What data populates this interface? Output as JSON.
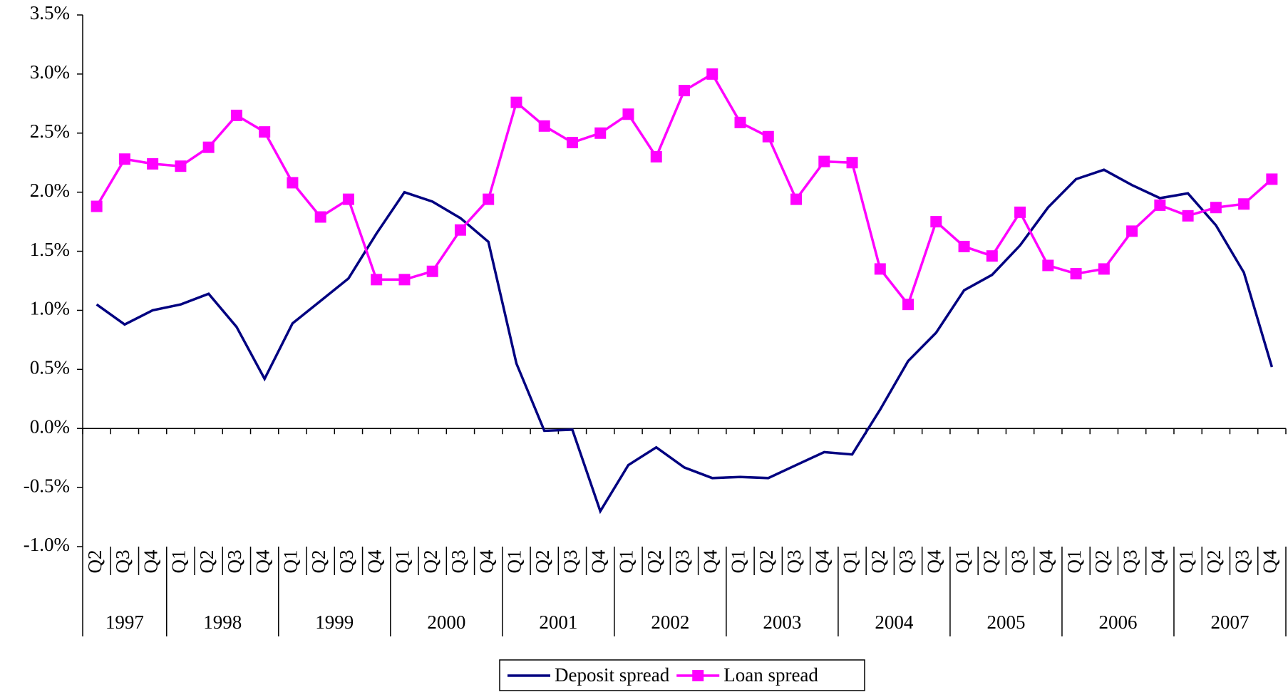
{
  "chart_data": {
    "type": "line",
    "category_groups": [
      {
        "name": "1997",
        "categories": [
          "Q2",
          "Q3",
          "Q4"
        ]
      },
      {
        "name": "1998",
        "categories": [
          "Q1",
          "Q2",
          "Q3",
          "Q4"
        ]
      },
      {
        "name": "1999",
        "categories": [
          "Q1",
          "Q2",
          "Q3",
          "Q4"
        ]
      },
      {
        "name": "2000",
        "categories": [
          "Q1",
          "Q2",
          "Q3",
          "Q4"
        ]
      },
      {
        "name": "2001",
        "categories": [
          "Q1",
          "Q2",
          "Q3",
          "Q4"
        ]
      },
      {
        "name": "2002",
        "categories": [
          "Q1",
          "Q2",
          "Q3",
          "Q4"
        ]
      },
      {
        "name": "2003",
        "categories": [
          "Q1",
          "Q2",
          "Q3",
          "Q4"
        ]
      },
      {
        "name": "2004",
        "categories": [
          "Q1",
          "Q2",
          "Q3",
          "Q4"
        ]
      },
      {
        "name": "2005",
        "categories": [
          "Q1",
          "Q2",
          "Q3",
          "Q4"
        ]
      },
      {
        "name": "2006",
        "categories": [
          "Q1",
          "Q2",
          "Q3",
          "Q4"
        ]
      },
      {
        "name": "2007",
        "categories": [
          "Q1",
          "Q2",
          "Q3",
          "Q4"
        ]
      }
    ],
    "series": [
      {
        "name": "Deposit spread",
        "color": "#000080",
        "marker": "none",
        "values": [
          1.05,
          0.88,
          1.0,
          1.05,
          1.14,
          0.86,
          0.42,
          0.89,
          1.08,
          1.27,
          1.65,
          2.0,
          1.92,
          1.78,
          1.58,
          0.55,
          -0.02,
          -0.01,
          -0.7,
          -0.31,
          -0.16,
          -0.33,
          -0.42,
          -0.41,
          -0.42,
          -0.31,
          -0.2,
          -0.22,
          0.16,
          0.57,
          0.81,
          1.17,
          1.3,
          1.55,
          1.87,
          2.11,
          2.19,
          2.06,
          1.95,
          1.99,
          1.72,
          1.32,
          0.52
        ]
      },
      {
        "name": "Loan spread",
        "color": "#ff00ff",
        "marker": "square",
        "values": [
          1.88,
          2.28,
          2.24,
          2.22,
          2.38,
          2.65,
          2.51,
          2.08,
          1.79,
          1.94,
          1.26,
          1.26,
          1.33,
          1.68,
          1.94,
          2.76,
          2.56,
          2.42,
          2.5,
          2.66,
          2.3,
          2.86,
          3.0,
          2.59,
          2.47,
          1.94,
          2.26,
          2.25,
          1.35,
          1.05,
          1.75,
          1.54,
          1.46,
          1.83,
          1.38,
          1.31,
          1.35,
          1.67,
          1.89,
          1.8,
          1.87,
          1.9,
          2.11
        ]
      }
    ],
    "ylim": [
      -1.0,
      3.5
    ],
    "yticks": [
      {
        "value": -1.0,
        "label": "-1.0%"
      },
      {
        "value": -0.5,
        "label": "-0.5%"
      },
      {
        "value": 0,
        "label": "0.0%"
      },
      {
        "value": 0.5,
        "label": "0.5%"
      },
      {
        "value": 1.0,
        "label": "1.0%"
      },
      {
        "value": 1.5,
        "label": "1.5%"
      },
      {
        "value": 2.0,
        "label": "2.0%"
      },
      {
        "value": 2.5,
        "label": "2.5%"
      },
      {
        "value": 3.0,
        "label": "3.0%"
      },
      {
        "value": 3.5,
        "label": "3.5%"
      }
    ],
    "grid": false,
    "legend": "bottom"
  }
}
